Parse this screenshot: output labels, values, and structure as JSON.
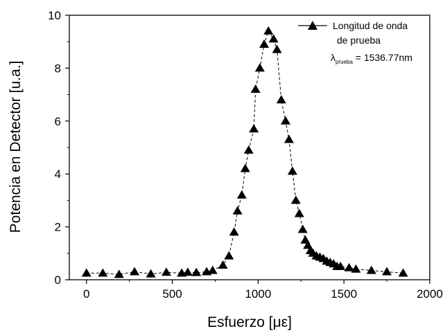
{
  "chart_data": {
    "type": "line",
    "title": "",
    "xlabel": "Esfuerzo [με]",
    "ylabel": "Potencia en Detector [u.a.]",
    "xlim": [
      -100,
      2000
    ],
    "ylim": [
      0,
      10
    ],
    "xticks": [
      0,
      500,
      1000,
      1500,
      2000
    ],
    "xtick_labels": [
      "0",
      "500",
      "1000",
      "1500",
      "2000"
    ],
    "yticks": [
      0,
      2,
      4,
      6,
      8,
      10
    ],
    "ytick_labels": [
      "0",
      "2",
      "4",
      "6",
      "8",
      "10"
    ],
    "grid": false,
    "legend_position": "top-right",
    "marker": "filled-triangle",
    "line_style": "dashed",
    "color": "#000000",
    "legend": {
      "series_name_line1": "Longitud de onda",
      "series_name_line2": "de prueba",
      "lambda_symbol": "λ",
      "lambda_subscript": "prueba",
      "lambda_value": " = 1536.77nm"
    },
    "series": [
      {
        "name": "Longitud de onda de prueba",
        "x": [
          0,
          95,
          190,
          280,
          375,
          465,
          555,
          590,
          640,
          700,
          735,
          795,
          830,
          860,
          880,
          905,
          925,
          945,
          975,
          985,
          1010,
          1035,
          1060,
          1090,
          1110,
          1135,
          1160,
          1180,
          1200,
          1220,
          1240,
          1260,
          1275,
          1290,
          1305,
          1320,
          1340,
          1360,
          1380,
          1400,
          1420,
          1440,
          1460,
          1480,
          1530,
          1570,
          1660,
          1750,
          1845
        ],
        "y": [
          0.25,
          0.25,
          0.2,
          0.3,
          0.22,
          0.28,
          0.25,
          0.28,
          0.27,
          0.3,
          0.35,
          0.55,
          0.9,
          1.8,
          2.6,
          3.2,
          4.2,
          4.9,
          5.7,
          7.2,
          8.0,
          8.9,
          9.4,
          9.1,
          8.7,
          6.8,
          6.0,
          5.3,
          4.1,
          3.0,
          2.5,
          1.9,
          1.5,
          1.3,
          1.1,
          1.0,
          0.9,
          0.85,
          0.8,
          0.7,
          0.65,
          0.6,
          0.5,
          0.5,
          0.45,
          0.4,
          0.35,
          0.3,
          0.25
        ]
      }
    ]
  }
}
